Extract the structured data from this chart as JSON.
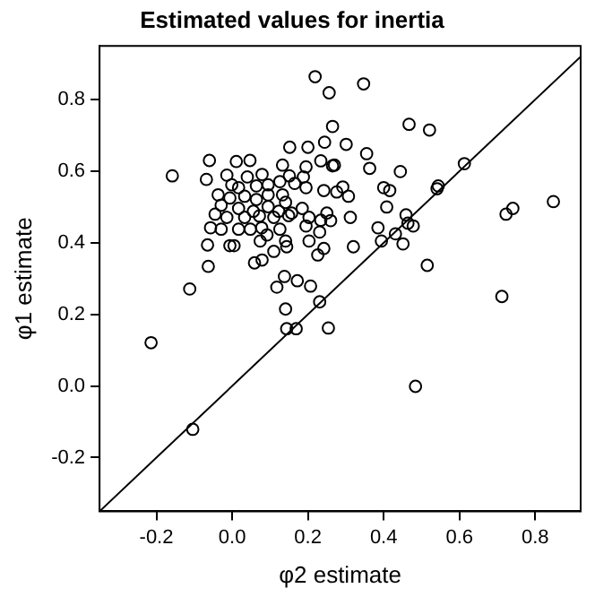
{
  "chart_data": {
    "type": "scatter",
    "title": "Estimated values for inertia",
    "xlabel": "φ2 estimate",
    "ylabel": "φ1 estimate",
    "xlim": [
      -0.35,
      0.92
    ],
    "ylim": [
      -0.35,
      0.95
    ],
    "xticks": [
      -0.2,
      {
        "value": 0,
        "label": "0.0"
      },
      0.2,
      0.4,
      0.6,
      0.8
    ],
    "yticks": [
      -0.2,
      {
        "value": 0,
        "label": "0.0"
      },
      0.2,
      0.4,
      0.6,
      0.8
    ],
    "grid": false,
    "series": [
      {
        "color": "#000000",
        "marker": "circle",
        "x": [
          0.219,
          0.256,
          0.265,
          0.152,
          0.2,
          0.244,
          0.234,
          0.265,
          -0.06,
          0.011,
          0.047,
          -0.158,
          -0.068,
          -0.014,
          0.04,
          0.133,
          0.195,
          0.188,
          0.151,
          0.079,
          -0.001,
          0.017,
          0.064,
          0.095,
          0.126,
          0.165,
          0.195,
          -0.037,
          -0.006,
          0.033,
          0.064,
          0.095,
          0.133,
          0.141,
          0.242,
          -0.029,
          0.017,
          0.056,
          0.095,
          0.123,
          0.157,
          0.185,
          -0.045,
          -0.014,
          0.033,
          0.072,
          0.11,
          0.149,
          0.203,
          0.234,
          -0.057,
          -0.029,
          0.017,
          0.048,
          0.078,
          0.092,
          0.126,
          0.195,
          0.231,
          -0.065,
          -0.006,
          0.005,
          0.074,
          0.141,
          0.144,
          0.203,
          0.242,
          0.11,
          0.079,
          0.059,
          -0.063,
          0.226,
          -0.112,
          0.118,
          0.138,
          0.172,
          0.207,
          0.347,
          0.467,
          0.521,
          0.301,
          0.27,
          0.355,
          0.363,
          0.444,
          0.613,
          0.292,
          0.276,
          0.307,
          0.4,
          0.416,
          0.544,
          0.541,
          0.408,
          0.25,
          0.26,
          0.312,
          0.459,
          0.464,
          0.478,
          0.385,
          0.431,
          0.394,
          0.451,
          0.32,
          0.723,
          0.741,
          0.848,
          0.515,
          0.712,
          -0.214,
          -0.104,
          0.141,
          0.144,
          0.169,
          0.231,
          0.254,
          0.484
        ],
        "values": [
          0.864,
          0.819,
          0.725,
          0.667,
          0.667,
          0.681,
          0.629,
          0.615,
          0.63,
          0.627,
          0.63,
          0.587,
          0.577,
          0.589,
          0.584,
          0.617,
          0.612,
          0.584,
          0.587,
          0.591,
          0.562,
          0.554,
          0.559,
          0.562,
          0.571,
          0.566,
          0.554,
          0.534,
          0.525,
          0.53,
          0.521,
          0.534,
          0.534,
          0.513,
          0.546,
          0.505,
          0.496,
          0.488,
          0.501,
          0.488,
          0.483,
          0.496,
          0.48,
          0.471,
          0.471,
          0.475,
          0.471,
          0.476,
          0.471,
          0.463,
          0.442,
          0.438,
          0.438,
          0.438,
          0.442,
          0.422,
          0.438,
          0.447,
          0.43,
          0.394,
          0.392,
          0.392,
          0.405,
          0.405,
          0.389,
          0.405,
          0.384,
          0.376,
          0.352,
          0.344,
          0.334,
          0.366,
          0.271,
          0.276,
          0.306,
          0.294,
          0.279,
          0.844,
          0.731,
          0.715,
          0.675,
          0.617,
          0.649,
          0.608,
          0.599,
          0.621,
          0.556,
          0.542,
          0.53,
          0.554,
          0.546,
          0.559,
          0.551,
          0.5,
          0.483,
          0.462,
          0.471,
          0.478,
          0.455,
          0.447,
          0.442,
          0.425,
          0.405,
          0.397,
          0.389,
          0.48,
          0.496,
          0.515,
          0.337,
          0.25,
          0.121,
          -0.121,
          0.215,
          0.16,
          0.16,
          0.235,
          0.162,
          -0.001
        ]
      },
      {
        "type": "line",
        "color": "#000000",
        "marker": "none",
        "x": [
          -0.35,
          0.92
        ],
        "values": [
          -0.35,
          0.92
        ]
      }
    ]
  }
}
